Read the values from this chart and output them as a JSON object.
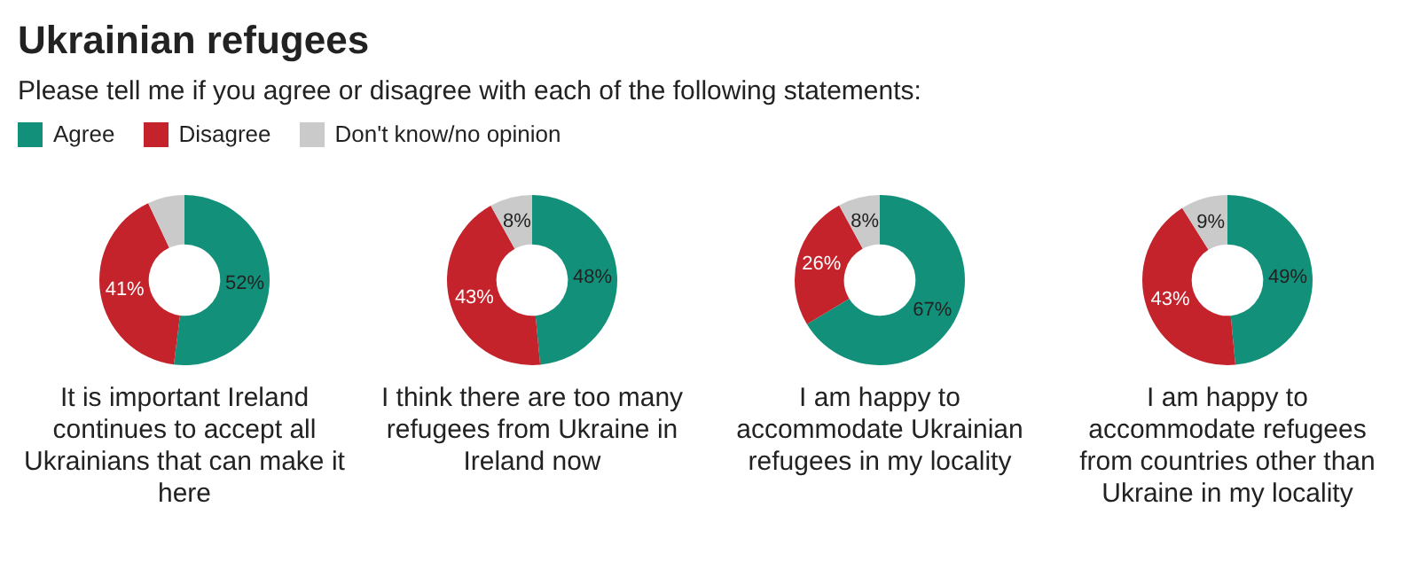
{
  "chart_data": [
    {
      "type": "donut",
      "title": "Ukrainian refugees",
      "subtitle": "Please tell me if you agree or disagree with each of the following statements:",
      "legend": "top",
      "categories": [
        "Agree",
        "Disagree",
        "Don't know/no opinion"
      ],
      "values": [
        52,
        41,
        7
      ],
      "colors": [
        "#12907a",
        "#c4232b",
        "#cacaca"
      ],
      "value_labels": [
        "52%",
        "41%",
        null
      ],
      "xlabel": "It is important Ireland continues to accept all Ukrainians that can make it here"
    },
    {
      "type": "donut",
      "categories": [
        null,
        null,
        null
      ],
      "values": [
        48,
        43,
        8
      ],
      "colors": [
        "#12907a",
        "#c4232b",
        "#cacaca"
      ],
      "value_labels": [
        "48%",
        "43%",
        "8%"
      ],
      "xlabel": "I think there are too many refugees from Ukraine in Ireland now"
    },
    {
      "type": "donut",
      "categories": [
        null,
        null,
        null
      ],
      "values": [
        67,
        26,
        8
      ],
      "colors": [
        "#12907a",
        "#c4232b",
        "#cacaca"
      ],
      "value_labels": [
        "67%",
        "26%",
        "8%"
      ],
      "xlabel": "I am happy to accommodate Ukrainian refugees in my locality"
    },
    {
      "type": "donut",
      "categories": [
        null,
        null,
        null
      ],
      "values": [
        49,
        43,
        9
      ],
      "colors": [
        "#12907a",
        "#c4232b",
        "#cacaca"
      ],
      "value_labels": [
        "49%",
        "43%",
        "9%"
      ],
      "xlabel": "I am happy to accommodate refugees from countries other than Ukraine in my locality"
    }
  ]
}
